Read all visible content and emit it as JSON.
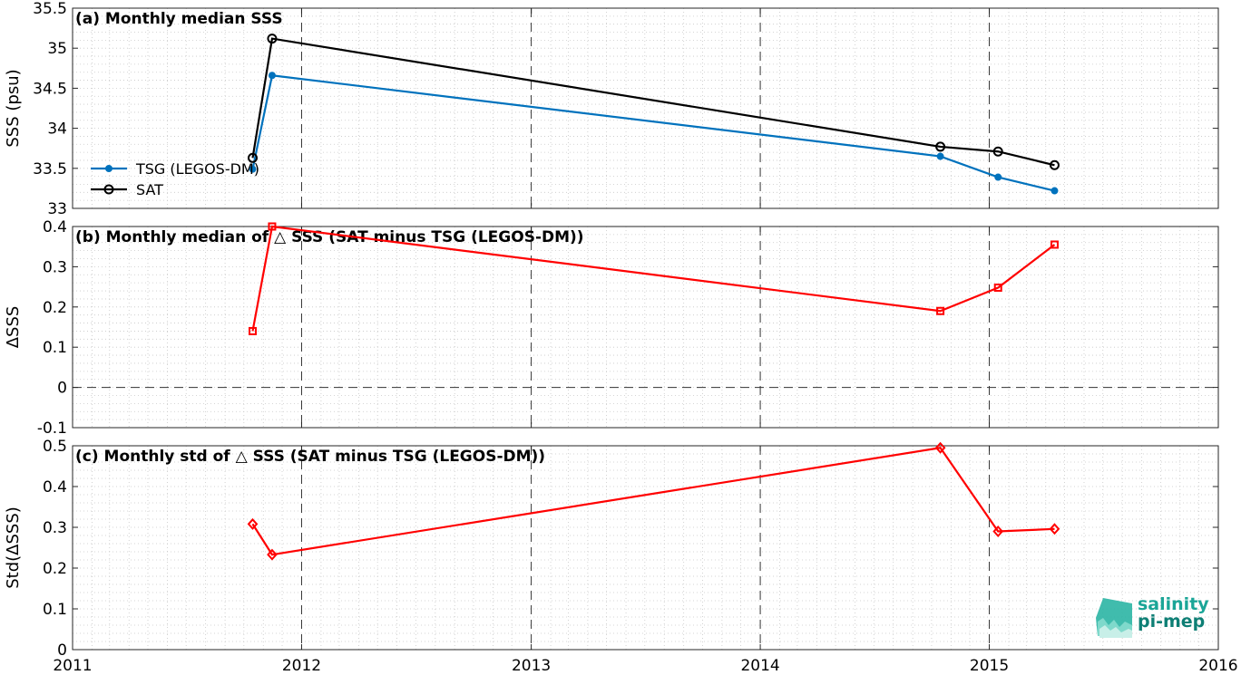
{
  "panels": [
    {
      "id": "a",
      "title": "(a) Monthly median SSS",
      "ylabel": "SSS (psu)",
      "ylim": [
        33,
        35.5
      ],
      "yticks": [
        33,
        33.5,
        34,
        34.5,
        35,
        35.5
      ],
      "ytick_labels": [
        "33",
        "33.5",
        "34",
        "34.5",
        "35",
        "35.5"
      ],
      "legend": {
        "position": "lower-left",
        "entries": [
          "TSG (LEGOS-DM)",
          "SAT"
        ]
      }
    },
    {
      "id": "b",
      "title": "(b) Monthly median of △ SSS (SAT minus TSG (LEGOS-DM))",
      "ylabel": "ΔSSS",
      "ylim": [
        -0.1,
        0.4
      ],
      "yticks": [
        -0.1,
        0,
        0.1,
        0.2,
        0.3,
        0.4
      ],
      "ytick_labels": [
        "-0.1",
        "0",
        "0.1",
        "0.2",
        "0.3",
        "0.4"
      ]
    },
    {
      "id": "c",
      "title": "(c) Monthly std of △ SSS (SAT minus TSG (LEGOS-DM))",
      "ylabel": "Std(ΔSSS)",
      "ylim": [
        0,
        0.5
      ],
      "yticks": [
        0,
        0.1,
        0.2,
        0.3,
        0.4,
        0.5
      ],
      "ytick_labels": [
        "0",
        "0.1",
        "0.2",
        "0.3",
        "0.4",
        "0.5"
      ]
    }
  ],
  "x_axis": {
    "range": [
      "2011-01-01",
      "2016-01-01"
    ],
    "ticks": [
      "2011-01-01",
      "2012-01-01",
      "2013-01-01",
      "2014-01-01",
      "2015-01-01",
      "2016-01-01"
    ],
    "tick_labels": [
      "2011",
      "2012",
      "2013",
      "2014",
      "2015",
      "2016"
    ]
  },
  "chart_data": [
    {
      "type": "line",
      "panel": "a",
      "title": "(a) Monthly median SSS",
      "ylabel": "SSS (psu)",
      "ylim": [
        33,
        35.5
      ],
      "grid": true,
      "series": [
        {
          "name": "TSG (LEGOS-DM)",
          "color": "#0072bd",
          "marker": "dot",
          "x": [
            "2011-10-15",
            "2011-11-15",
            "2014-10-15",
            "2015-01-15",
            "2015-04-15"
          ],
          "values": [
            33.49,
            34.66,
            33.65,
            33.39,
            33.22
          ]
        },
        {
          "name": "SAT",
          "color": "#000000",
          "marker": "circle",
          "x": [
            "2011-10-15",
            "2011-11-15",
            "2014-10-15",
            "2015-01-15",
            "2015-04-15"
          ],
          "values": [
            33.63,
            35.12,
            33.77,
            33.71,
            33.54
          ]
        }
      ]
    },
    {
      "type": "line",
      "panel": "b",
      "title": "(b) Monthly median of △ SSS (SAT minus TSG (LEGOS-DM))",
      "ylabel": "ΔSSS",
      "ylim": [
        -0.1,
        0.4
      ],
      "zero_line": true,
      "grid": true,
      "series": [
        {
          "color": "#ff0000",
          "marker": "square",
          "x": [
            "2011-10-15",
            "2011-11-15",
            "2014-10-15",
            "2015-01-15",
            "2015-04-15"
          ],
          "values": [
            0.14,
            0.4,
            0.19,
            0.248,
            0.355
          ]
        }
      ]
    },
    {
      "type": "line",
      "panel": "c",
      "title": "(c) Monthly std of △ SSS (SAT minus TSG (LEGOS-DM))",
      "ylabel": "Std(ΔSSS)",
      "ylim": [
        0,
        0.5
      ],
      "grid": true,
      "series": [
        {
          "color": "#ff0000",
          "marker": "diamond",
          "x": [
            "2011-10-15",
            "2011-11-15",
            "2014-10-15",
            "2015-01-15",
            "2015-04-15"
          ],
          "values": [
            0.308,
            0.233,
            0.495,
            0.29,
            0.296
          ]
        }
      ]
    }
  ],
  "logo": {
    "line1": "salinity",
    "line2": "pi-mep"
  },
  "colors": {
    "tsg": "#0072bd",
    "sat": "#000000",
    "delta": "#ff0000",
    "logo": "#1aa597"
  }
}
